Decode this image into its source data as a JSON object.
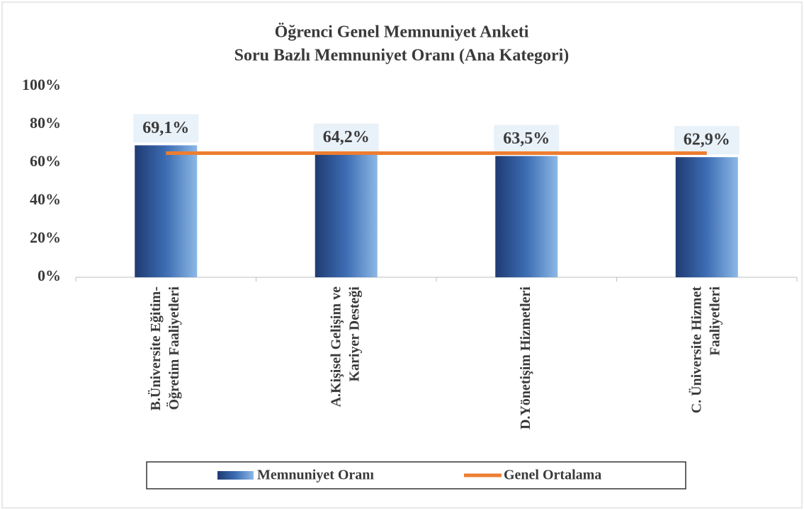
{
  "chart_data": {
    "type": "bar",
    "title": [
      "Öğrenci Genel Memnuniyet Anketi",
      "Soru Bazlı Memnuniyet Oranı (Ana Kategori)"
    ],
    "categories": [
      [
        "B.Üniversite Eğitim-",
        "Öğretim Faaliyetleri"
      ],
      [
        "A.Kişisel Gelişim ve",
        "Kariyer Desteği"
      ],
      [
        "D.Yönetişim Hizmetleri"
      ],
      [
        "C. Üniversite Hizmet",
        "Faaliyetleri"
      ]
    ],
    "series": [
      {
        "name": "Memnuniyet Oranı",
        "type": "bar",
        "color": "#2e5597",
        "values": [
          69.1,
          64.2,
          63.5,
          62.9
        ],
        "value_labels": [
          "69,1%",
          "64,2%",
          "63,5%",
          "62,9%"
        ]
      },
      {
        "name": "Genel Ortalama",
        "type": "line",
        "color": "#ed7d31",
        "values": [
          65,
          65,
          65,
          65
        ]
      }
    ],
    "ylim": [
      0,
      100
    ],
    "yticks": [
      {
        "value": 0,
        "label": "0%"
      },
      {
        "value": 20,
        "label": "20%"
      },
      {
        "value": 40,
        "label": "40%"
      },
      {
        "value": 60,
        "label": "60%"
      },
      {
        "value": 80,
        "label": "80%"
      },
      {
        "value": 100,
        "label": "100%"
      }
    ],
    "grid": false,
    "legend": "bottom"
  }
}
